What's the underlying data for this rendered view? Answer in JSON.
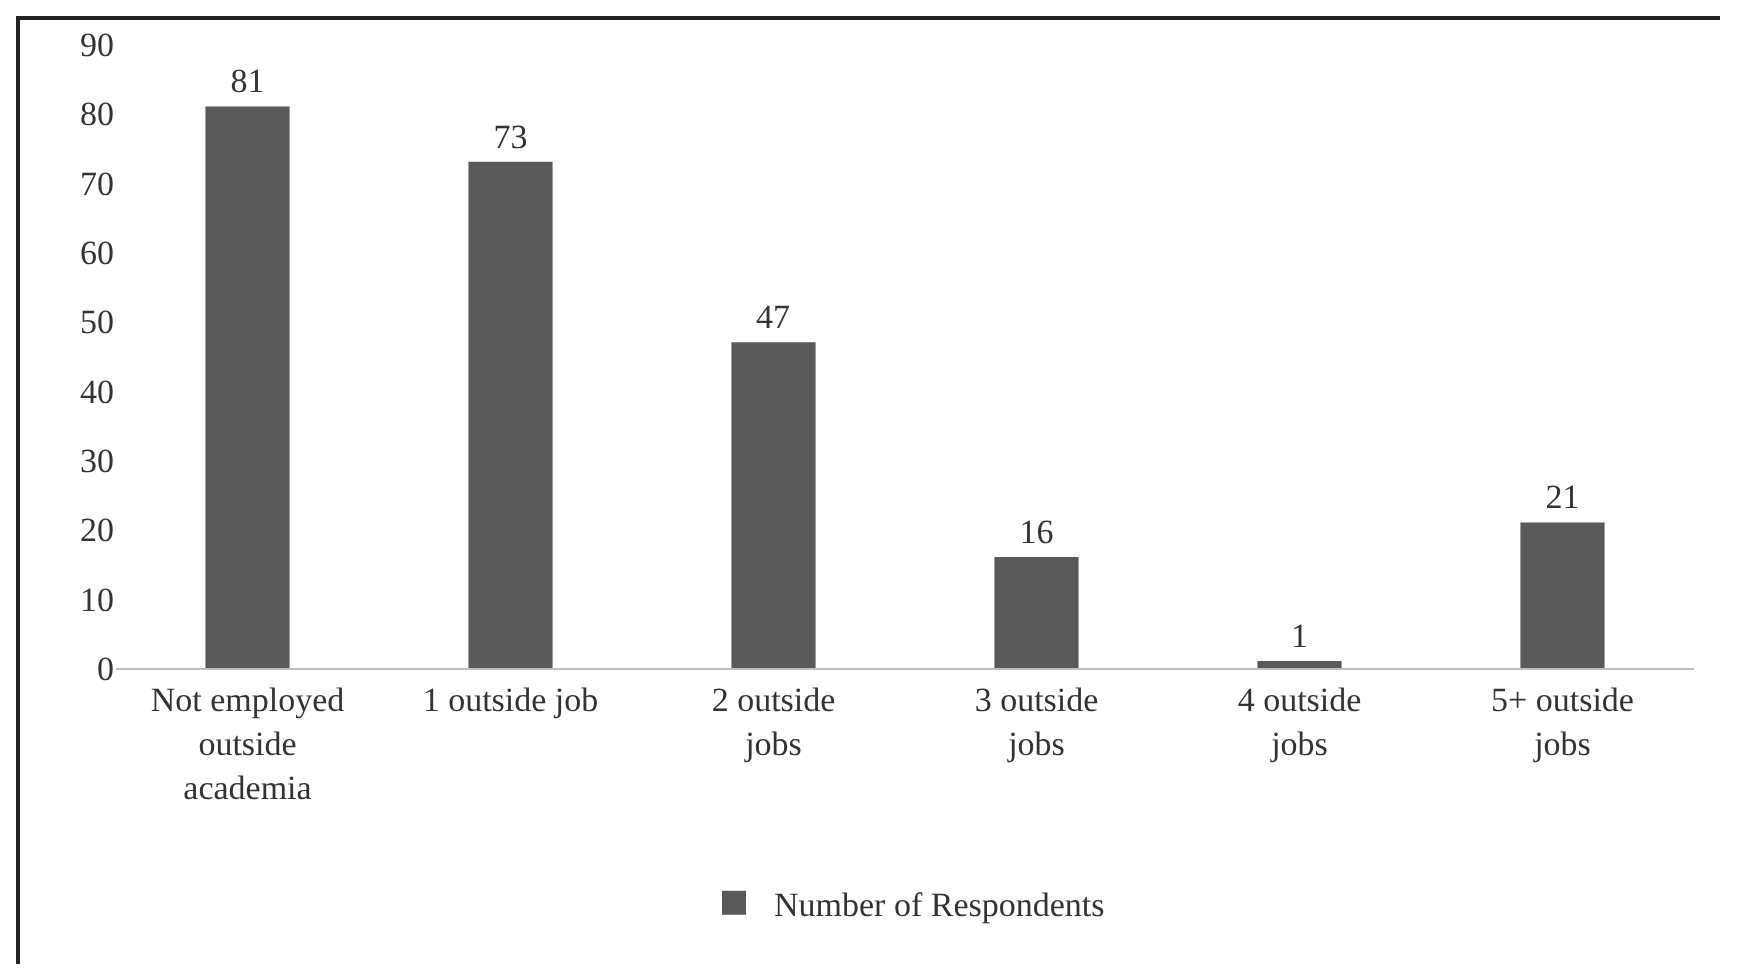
{
  "chart_data": {
    "type": "bar",
    "categories": [
      "Not employed outside academia",
      "1 outside job",
      "2 outside jobs",
      "3 outside jobs",
      "4 outside jobs",
      "5+ outside jobs"
    ],
    "series": [
      {
        "name": "Number of Respondents",
        "color": "#595959",
        "values": [
          81,
          73,
          47,
          16,
          1,
          21
        ]
      }
    ],
    "ylim": [
      0,
      90
    ],
    "yticks": [
      0,
      10,
      20,
      30,
      40,
      50,
      60,
      70,
      80,
      90
    ],
    "grid": false,
    "data_labels": true,
    "legend": "bottom"
  }
}
